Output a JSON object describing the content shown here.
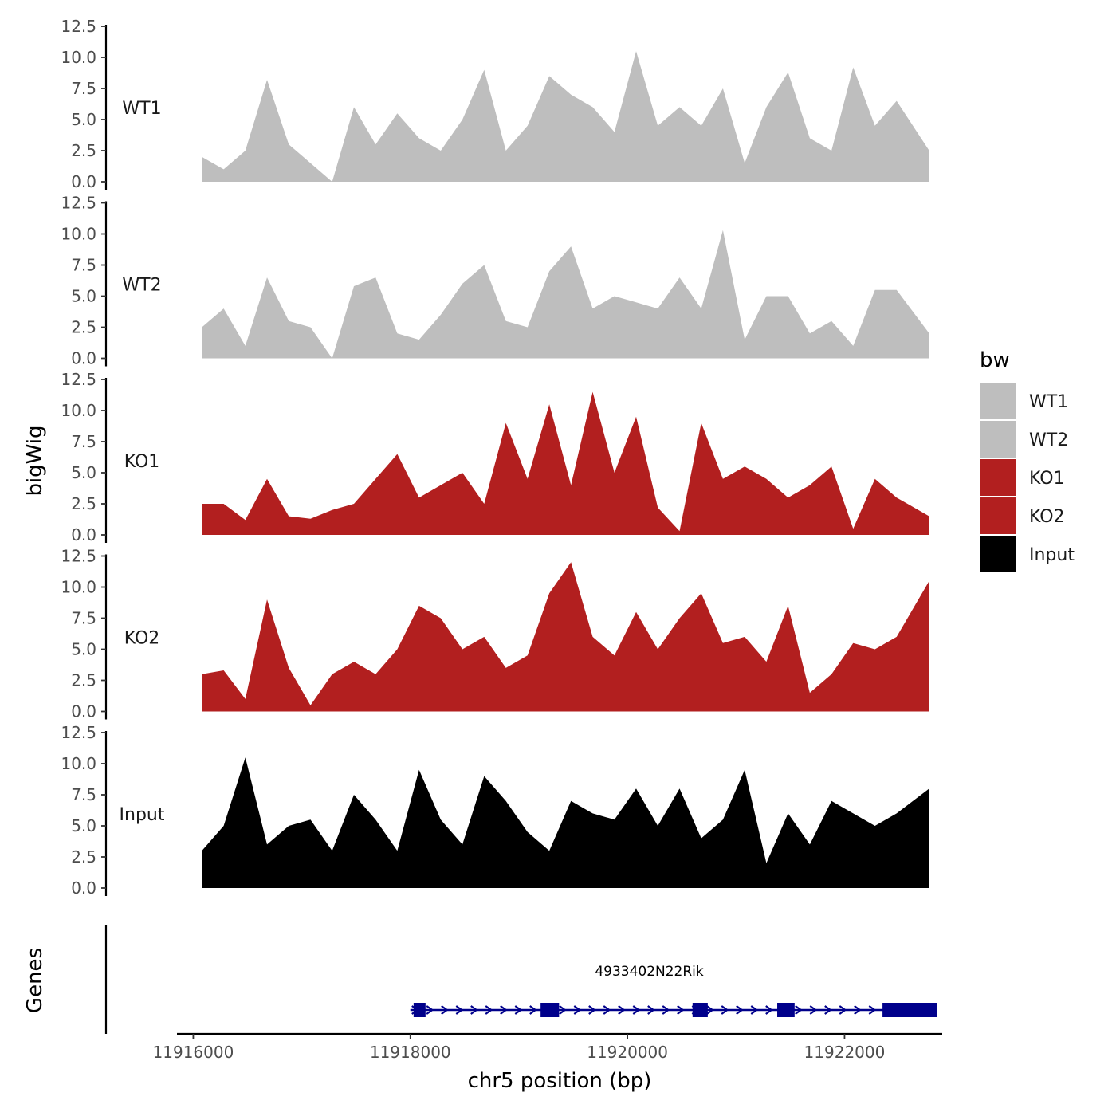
{
  "chart_data": {
    "type": "area",
    "ylabel": "bigWig",
    "xlabel": "chr5 position (bp)",
    "xlim": [
      11915850,
      11922900
    ],
    "ylim": [
      0,
      12.5
    ],
    "y_ticks": [
      "0.0",
      "2.5",
      "5.0",
      "7.5",
      "10.0",
      "12.5"
    ],
    "x_ticks": [
      {
        "value": 11916000,
        "label": "11916000"
      },
      {
        "value": 11918000,
        "label": "11918000"
      },
      {
        "value": 11920000,
        "label": "11920000"
      },
      {
        "value": 11922000,
        "label": "11922000"
      }
    ],
    "track_x": [
      11916080,
      11916280,
      11916480,
      11916680,
      11916880,
      11917080,
      11917280,
      11917480,
      11917680,
      11917880,
      11918080,
      11918280,
      11918480,
      11918680,
      11918880,
      11919080,
      11919280,
      11919480,
      11919680,
      11919880,
      11920080,
      11920280,
      11920480,
      11920680,
      11920880,
      11921080,
      11921280,
      11921480,
      11921680,
      11921880,
      11922080,
      11922280,
      11922480,
      11922780
    ],
    "series": [
      {
        "name": "WT1",
        "color": "#bebebe",
        "values": [
          2.0,
          1.0,
          2.5,
          8.2,
          3.0,
          1.5,
          0.0,
          6.0,
          3.0,
          5.5,
          3.5,
          2.5,
          5.0,
          9.0,
          2.5,
          4.5,
          8.5,
          7.0,
          6.0,
          4.0,
          10.5,
          4.5,
          6.0,
          4.5,
          7.5,
          1.5,
          6.0,
          8.8,
          3.5,
          2.5,
          9.2,
          4.5,
          6.5,
          2.5
        ]
      },
      {
        "name": "WT2",
        "color": "#bebebe",
        "values": [
          2.5,
          4.0,
          1.0,
          6.5,
          3.0,
          2.5,
          0.0,
          5.8,
          6.5,
          2.0,
          1.5,
          3.5,
          6.0,
          7.5,
          3.0,
          2.5,
          7.0,
          9.0,
          4.0,
          5.0,
          4.5,
          4.0,
          6.5,
          4.0,
          10.3,
          1.5,
          5.0,
          5.0,
          2.0,
          3.0,
          1.0,
          5.5,
          5.5,
          2.0
        ]
      },
      {
        "name": "KO1",
        "color": "#b21f1f",
        "values": [
          2.5,
          2.5,
          1.2,
          4.5,
          1.5,
          1.3,
          2.0,
          2.5,
          4.5,
          6.5,
          3.0,
          4.0,
          5.0,
          2.5,
          9.0,
          4.5,
          10.5,
          4.0,
          11.5,
          5.0,
          9.5,
          2.2,
          0.3,
          9.0,
          4.5,
          5.5,
          4.5,
          3.0,
          4.0,
          5.5,
          0.5,
          4.5,
          3.0,
          1.5
        ]
      },
      {
        "name": "KO2",
        "color": "#b21f1f",
        "values": [
          3.0,
          3.3,
          1.0,
          9.0,
          3.5,
          0.5,
          3.0,
          4.0,
          3.0,
          5.0,
          8.5,
          7.5,
          5.0,
          6.0,
          3.5,
          4.5,
          9.5,
          12.0,
          6.0,
          4.5,
          8.0,
          5.0,
          7.5,
          9.5,
          5.5,
          6.0,
          4.0,
          8.5,
          1.5,
          3.0,
          5.5,
          5.0,
          6.0,
          10.5
        ]
      },
      {
        "name": "Input",
        "color": "#000000",
        "values": [
          3.0,
          5.0,
          10.5,
          3.5,
          5.0,
          5.5,
          3.0,
          7.5,
          5.5,
          3.0,
          9.5,
          5.5,
          3.5,
          9.0,
          7.0,
          4.5,
          3.0,
          7.0,
          6.0,
          5.5,
          8.0,
          5.0,
          8.0,
          4.0,
          5.5,
          9.5,
          2.0,
          6.0,
          3.5,
          7.0,
          6.0,
          5.0,
          6.0,
          8.0
        ]
      }
    ],
    "legend": {
      "title": "bw",
      "entries": [
        {
          "label": "WT1",
          "color": "#bebebe"
        },
        {
          "label": "WT2",
          "color": "#bebebe"
        },
        {
          "label": "KO1",
          "color": "#b21f1f"
        },
        {
          "label": "KO2",
          "color": "#b21f1f"
        },
        {
          "label": "Input",
          "color": "#000000"
        }
      ]
    },
    "genes": {
      "label": "Genes",
      "color": "#00008b",
      "items": [
        {
          "name": "4933402N22Rik",
          "start": 11918000,
          "end": 11922850,
          "strand": "+",
          "exons": [
            [
              11918030,
              11918140
            ],
            [
              11919200,
              11919370
            ],
            [
              11920600,
              11920740
            ],
            [
              11921380,
              11921540
            ],
            [
              11922350,
              11922850
            ]
          ]
        }
      ]
    },
    "grid": false,
    "legend_position": "right"
  }
}
